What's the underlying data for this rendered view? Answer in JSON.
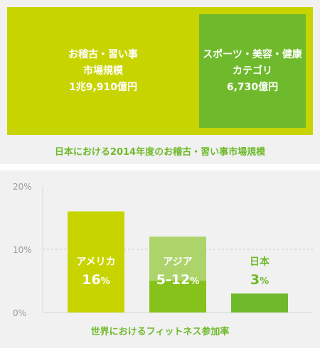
{
  "market": {
    "total_label_line1": "お稽古・習い事",
    "total_label_line2": "市場規模",
    "total_value": "1兆9,910億円",
    "sports_label_line1": "スポーツ・美容・健康",
    "sports_label_line2": "カテゴリ",
    "sports_value": "6,730億円",
    "caption": "日本における2014年度のお稽古・習い事市場規模",
    "colors": {
      "total": "#c8d400",
      "sports": "#6fba2c"
    }
  },
  "chart_data": {
    "type": "bar",
    "title": "世界におけるフィットネス参加率",
    "ylim": [
      0,
      20
    ],
    "yticks": [
      "0%",
      "10%",
      "20%"
    ],
    "ytick_values": [
      0,
      10,
      20
    ],
    "grid": true,
    "bars": [
      {
        "name": "アメリカ",
        "value_text": "16",
        "unit": "%",
        "value": 16,
        "color": "#c8d400"
      },
      {
        "name": "アジア",
        "value_text": "5-12",
        "unit": "%",
        "value": 12,
        "range": [
          5,
          12
        ],
        "color": "#86c21a",
        "range_color": "#acd46a"
      },
      {
        "name": "日本",
        "value_text": "3",
        "unit": "%",
        "value": 3,
        "color": "#6fba2c"
      }
    ]
  }
}
